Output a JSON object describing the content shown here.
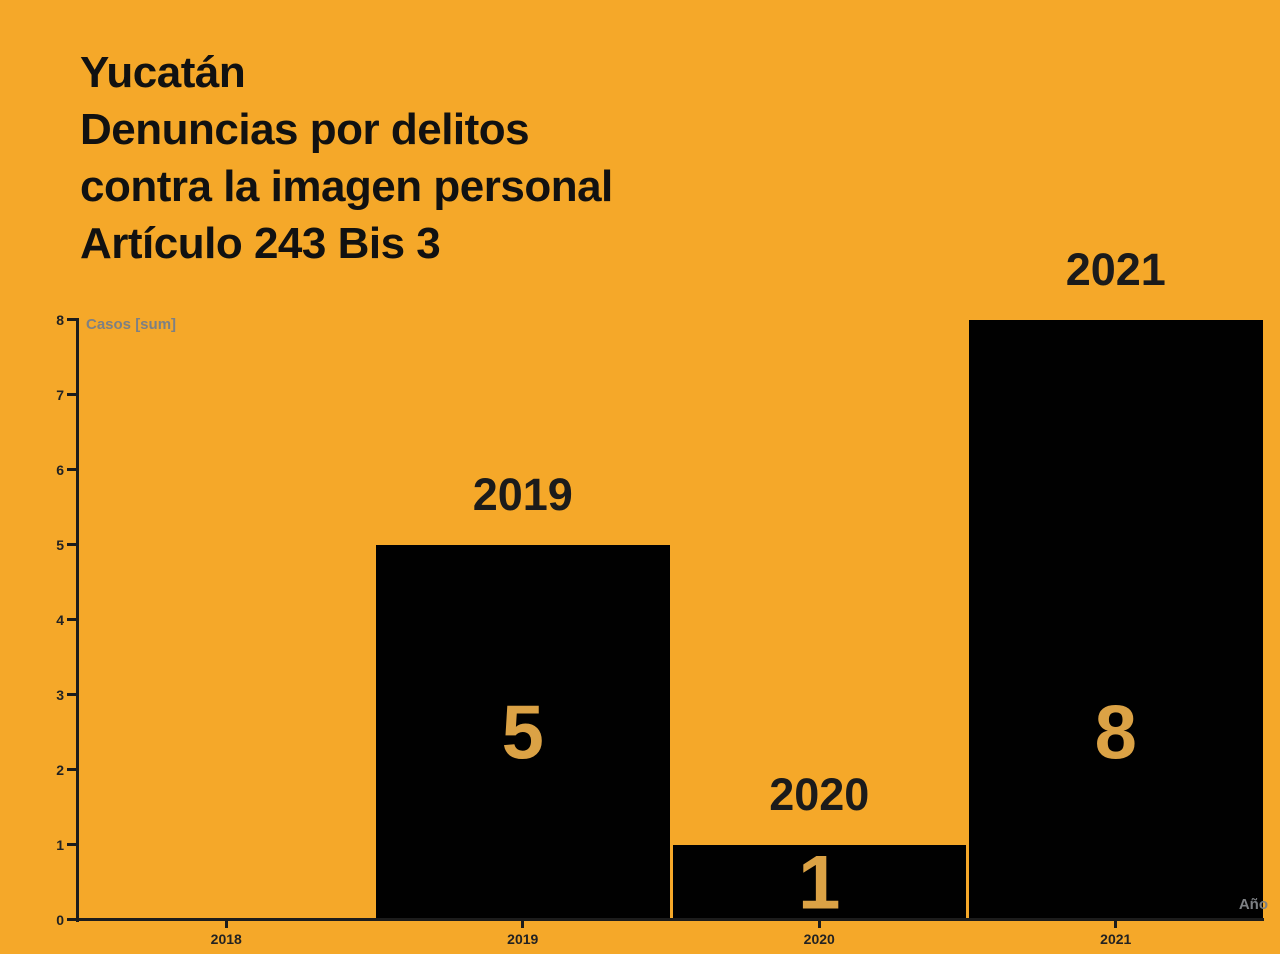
{
  "title": {
    "lines": [
      "Yucatán",
      "Denuncias por delitos",
      "contra la imagen personal",
      "Artículo 243 Bis 3"
    ]
  },
  "colors": {
    "background": "#F5A829",
    "bar": "#010101",
    "value_label": "#DBA245",
    "axis": "#1c1c1c",
    "tick_text": "#222222",
    "year_label": "#1b1b1b",
    "title_text": "#111111",
    "axis_title_gray": "#7d8084"
  },
  "chart_data": {
    "type": "bar",
    "categories": [
      "2018",
      "2019",
      "2020",
      "2021"
    ],
    "values": [
      0,
      5,
      1,
      8
    ],
    "bar_value_labels": [
      "",
      "5",
      "1",
      "8"
    ],
    "year_labels_above_bars": [
      "",
      "2019",
      "2020",
      "2021"
    ],
    "title": "Yucatán Denuncias por delitos contra la imagen personal Artículo 243 Bis 3",
    "xlabel": "Año",
    "ylabel": "Casos [sum]",
    "ylim": [
      0,
      8
    ],
    "yticks": [
      0,
      1,
      2,
      3,
      4,
      5,
      6,
      7,
      8
    ],
    "grid": false,
    "legend": "none"
  }
}
